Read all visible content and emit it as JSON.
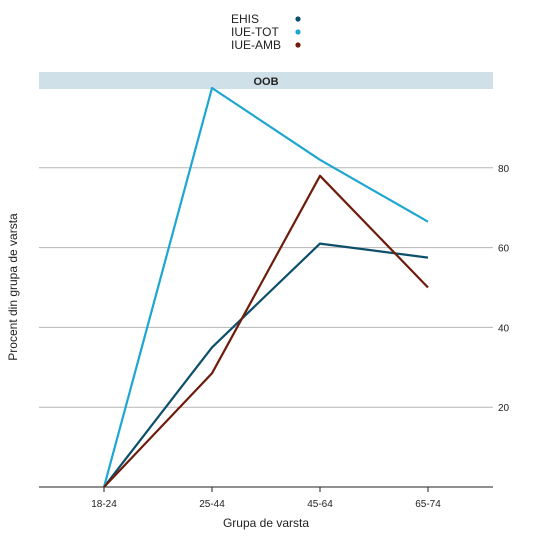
{
  "chart_data": {
    "type": "line",
    "panel_title": "OOB",
    "xlabel": "Grupa de varsta",
    "ylabel": "Procent din grupa de varsta",
    "categories": [
      "18-24",
      "25-44",
      "45-64",
      "65-74"
    ],
    "yticks": [
      20,
      40,
      60,
      80
    ],
    "ylim": [
      0,
      100
    ],
    "grid": true,
    "legend_position": "top",
    "series": [
      {
        "name": "EHIS",
        "color": "#0d4f6b",
        "values": [
          0,
          35,
          61,
          57.5
        ]
      },
      {
        "name": "IUE-TOT",
        "color": "#1ea6d2",
        "values": [
          0,
          100,
          82,
          66.5
        ]
      },
      {
        "name": "IUE-AMB",
        "color": "#6e1c0c",
        "values": [
          0,
          28.5,
          78,
          50
        ]
      }
    ]
  }
}
